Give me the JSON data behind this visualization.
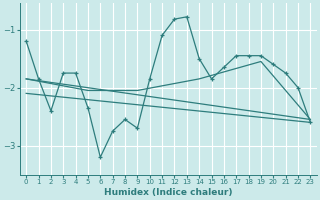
{
  "xlabel": "Humidex (Indice chaleur)",
  "bg_color": "#cceaea",
  "grid_color": "#ffffff",
  "line_color": "#2e7d7d",
  "xlim": [
    -0.5,
    23.5
  ],
  "ylim": [
    -3.5,
    -0.55
  ],
  "yticks": [
    -3,
    -2,
    -1
  ],
  "xticks": [
    0,
    1,
    2,
    3,
    4,
    5,
    6,
    7,
    8,
    9,
    10,
    11,
    12,
    13,
    14,
    15,
    16,
    17,
    18,
    19,
    20,
    21,
    22,
    23
  ],
  "series1_x": [
    0,
    1,
    2,
    3,
    4,
    5,
    6,
    7,
    8,
    9,
    10,
    11,
    12,
    13,
    14,
    15,
    16,
    17,
    18,
    19,
    20,
    21,
    22,
    23
  ],
  "series1_y": [
    -1.2,
    -1.85,
    -2.4,
    -1.75,
    -1.75,
    -2.35,
    -3.2,
    -2.75,
    -2.55,
    -2.7,
    -1.85,
    -1.1,
    -0.82,
    -0.78,
    -1.5,
    -1.85,
    -1.65,
    -1.45,
    -1.45,
    -1.45,
    -1.6,
    -1.75,
    -2.0,
    -2.6
  ],
  "series2_x": [
    0,
    5,
    9,
    14,
    19,
    23
  ],
  "series2_y": [
    -1.85,
    -2.05,
    -2.05,
    -1.85,
    -1.55,
    -2.55
  ],
  "series3_x": [
    0,
    23
  ],
  "series3_y": [
    -1.85,
    -2.55
  ],
  "series4_x": [
    0,
    23
  ],
  "series4_y": [
    -2.1,
    -2.6
  ]
}
